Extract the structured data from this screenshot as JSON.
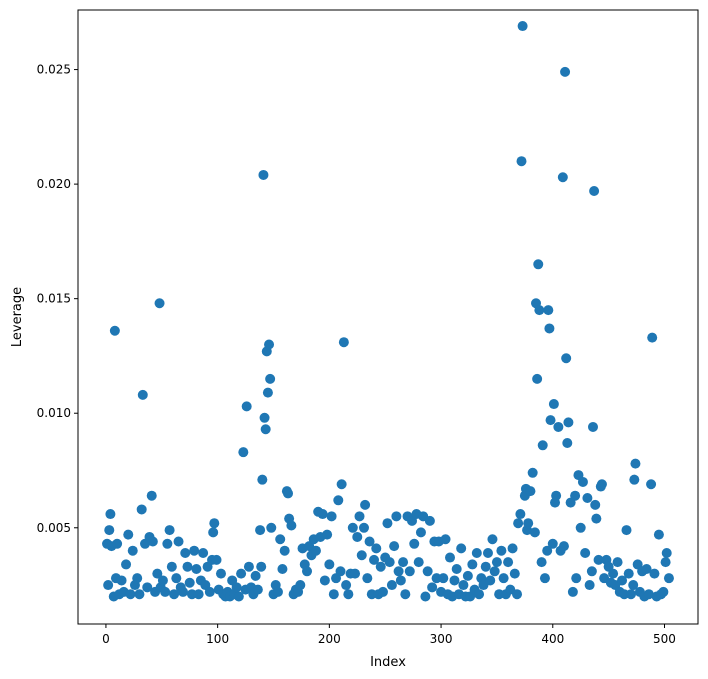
{
  "chart_data": {
    "type": "scatter",
    "xlabel": "Index",
    "ylabel": "Leverage",
    "xlim": [
      -25,
      530
    ],
    "ylim": [
      0.0008,
      0.0276
    ],
    "x_ticks": [
      0,
      100,
      200,
      300,
      400,
      500
    ],
    "x_tick_labels": [
      "0",
      "100",
      "200",
      "300",
      "400",
      "500"
    ],
    "y_ticks": [
      0.005,
      0.01,
      0.015,
      0.02,
      0.025
    ],
    "y_tick_labels": [
      "0.005",
      "0.010",
      "0.015",
      "0.020",
      "0.025"
    ],
    "grid": false,
    "legend": "none",
    "marker_color": "#1f77b4",
    "series": [
      {
        "points": [
          [
            1,
            0.0043
          ],
          [
            2,
            0.0025
          ],
          [
            3,
            0.0049
          ],
          [
            4,
            0.0056
          ],
          [
            5,
            0.0042
          ],
          [
            7,
            0.002
          ],
          [
            8,
            0.0136
          ],
          [
            9,
            0.0028
          ],
          [
            10,
            0.0043
          ],
          [
            12,
            0.0021
          ],
          [
            14,
            0.0027
          ],
          [
            16,
            0.0022
          ],
          [
            18,
            0.0034
          ],
          [
            20,
            0.0047
          ],
          [
            22,
            0.0021
          ],
          [
            24,
            0.004
          ],
          [
            26,
            0.0025
          ],
          [
            28,
            0.0028
          ],
          [
            30,
            0.0021
          ],
          [
            32,
            0.0058
          ],
          [
            33,
            0.0108
          ],
          [
            35,
            0.0043
          ],
          [
            37,
            0.0024
          ],
          [
            39,
            0.0046
          ],
          [
            41,
            0.0064
          ],
          [
            42,
            0.0044
          ],
          [
            44,
            0.0022
          ],
          [
            46,
            0.003
          ],
          [
            48,
            0.0148
          ],
          [
            49,
            0.0024
          ],
          [
            51,
            0.0027
          ],
          [
            53,
            0.0022
          ],
          [
            55,
            0.0043
          ],
          [
            57,
            0.0049
          ],
          [
            59,
            0.0033
          ],
          [
            61,
            0.0021
          ],
          [
            63,
            0.0028
          ],
          [
            65,
            0.0044
          ],
          [
            67,
            0.0024
          ],
          [
            69,
            0.0022
          ],
          [
            71,
            0.0039
          ],
          [
            73,
            0.0033
          ],
          [
            75,
            0.0026
          ],
          [
            77,
            0.0021
          ],
          [
            79,
            0.004
          ],
          [
            81,
            0.0032
          ],
          [
            83,
            0.0021
          ],
          [
            85,
            0.0027
          ],
          [
            87,
            0.0039
          ],
          [
            89,
            0.0025
          ],
          [
            91,
            0.0033
          ],
          [
            93,
            0.0022
          ],
          [
            95,
            0.0036
          ],
          [
            96,
            0.0048
          ],
          [
            97,
            0.0052
          ],
          [
            99,
            0.0036
          ],
          [
            101,
            0.0023
          ],
          [
            103,
            0.003
          ],
          [
            105,
            0.0021
          ],
          [
            107,
            0.002
          ],
          [
            109,
            0.0022
          ],
          [
            111,
            0.002
          ],
          [
            113,
            0.0027
          ],
          [
            115,
            0.0021
          ],
          [
            117,
            0.0024
          ],
          [
            119,
            0.002
          ],
          [
            121,
            0.003
          ],
          [
            123,
            0.0083
          ],
          [
            125,
            0.0023
          ],
          [
            126,
            0.0103
          ],
          [
            128,
            0.0033
          ],
          [
            130,
            0.0024
          ],
          [
            132,
            0.0021
          ],
          [
            134,
            0.0029
          ],
          [
            136,
            0.0023
          ],
          [
            138,
            0.0049
          ],
          [
            139,
            0.0033
          ],
          [
            140,
            0.0071
          ],
          [
            141,
            0.0204
          ],
          [
            142,
            0.0098
          ],
          [
            143,
            0.0093
          ],
          [
            144,
            0.0127
          ],
          [
            145,
            0.0109
          ],
          [
            146,
            0.013
          ],
          [
            147,
            0.0115
          ],
          [
            148,
            0.005
          ],
          [
            150,
            0.0021
          ],
          [
            152,
            0.0025
          ],
          [
            154,
            0.0022
          ],
          [
            156,
            0.0045
          ],
          [
            158,
            0.0032
          ],
          [
            160,
            0.004
          ],
          [
            162,
            0.0066
          ],
          [
            163,
            0.0065
          ],
          [
            164,
            0.0054
          ],
          [
            166,
            0.0051
          ],
          [
            168,
            0.0021
          ],
          [
            170,
            0.0023
          ],
          [
            172,
            0.0022
          ],
          [
            174,
            0.0025
          ],
          [
            176,
            0.0041
          ],
          [
            178,
            0.0034
          ],
          [
            180,
            0.0031
          ],
          [
            182,
            0.0042
          ],
          [
            184,
            0.0038
          ],
          [
            186,
            0.0045
          ],
          [
            188,
            0.004
          ],
          [
            190,
            0.0057
          ],
          [
            192,
            0.0046
          ],
          [
            194,
            0.0056
          ],
          [
            196,
            0.0027
          ],
          [
            198,
            0.0047
          ],
          [
            200,
            0.0034
          ],
          [
            202,
            0.0055
          ],
          [
            204,
            0.0021
          ],
          [
            206,
            0.0028
          ],
          [
            208,
            0.0062
          ],
          [
            210,
            0.0031
          ],
          [
            211,
            0.0069
          ],
          [
            213,
            0.0131
          ],
          [
            215,
            0.0025
          ],
          [
            217,
            0.0021
          ],
          [
            219,
            0.003
          ],
          [
            221,
            0.005
          ],
          [
            223,
            0.003
          ],
          [
            225,
            0.0046
          ],
          [
            227,
            0.0055
          ],
          [
            229,
            0.0038
          ],
          [
            231,
            0.005
          ],
          [
            232,
            0.006
          ],
          [
            234,
            0.0028
          ],
          [
            236,
            0.0044
          ],
          [
            238,
            0.0021
          ],
          [
            240,
            0.0036
          ],
          [
            242,
            0.0041
          ],
          [
            244,
            0.0021
          ],
          [
            246,
            0.0033
          ],
          [
            248,
            0.0022
          ],
          [
            250,
            0.0037
          ],
          [
            252,
            0.0052
          ],
          [
            254,
            0.0035
          ],
          [
            256,
            0.0025
          ],
          [
            258,
            0.0042
          ],
          [
            260,
            0.0055
          ],
          [
            262,
            0.0031
          ],
          [
            264,
            0.0027
          ],
          [
            266,
            0.0035
          ],
          [
            268,
            0.0021
          ],
          [
            270,
            0.0055
          ],
          [
            272,
            0.0031
          ],
          [
            274,
            0.0053
          ],
          [
            276,
            0.0043
          ],
          [
            278,
            0.0056
          ],
          [
            280,
            0.0035
          ],
          [
            282,
            0.0048
          ],
          [
            284,
            0.0055
          ],
          [
            286,
            0.002
          ],
          [
            288,
            0.0031
          ],
          [
            290,
            0.0053
          ],
          [
            292,
            0.0024
          ],
          [
            294,
            0.0044
          ],
          [
            296,
            0.0028
          ],
          [
            298,
            0.0044
          ],
          [
            300,
            0.0022
          ],
          [
            302,
            0.0028
          ],
          [
            304,
            0.0045
          ],
          [
            306,
            0.0021
          ],
          [
            308,
            0.0037
          ],
          [
            310,
            0.002
          ],
          [
            312,
            0.0027
          ],
          [
            314,
            0.0032
          ],
          [
            316,
            0.0021
          ],
          [
            318,
            0.0041
          ],
          [
            320,
            0.0025
          ],
          [
            322,
            0.002
          ],
          [
            324,
            0.0029
          ],
          [
            326,
            0.002
          ],
          [
            328,
            0.0034
          ],
          [
            330,
            0.0023
          ],
          [
            332,
            0.0039
          ],
          [
            334,
            0.0021
          ],
          [
            336,
            0.0028
          ],
          [
            338,
            0.0025
          ],
          [
            340,
            0.0033
          ],
          [
            342,
            0.0039
          ],
          [
            344,
            0.0027
          ],
          [
            346,
            0.0045
          ],
          [
            348,
            0.0031
          ],
          [
            350,
            0.0035
          ],
          [
            352,
            0.0021
          ],
          [
            354,
            0.004
          ],
          [
            356,
            0.0028
          ],
          [
            358,
            0.0021
          ],
          [
            360,
            0.0035
          ],
          [
            362,
            0.0023
          ],
          [
            364,
            0.0041
          ],
          [
            366,
            0.003
          ],
          [
            368,
            0.0021
          ],
          [
            369,
            0.0052
          ],
          [
            371,
            0.0056
          ],
          [
            372,
            0.021
          ],
          [
            373,
            0.0269
          ],
          [
            375,
            0.0064
          ],
          [
            376,
            0.0067
          ],
          [
            377,
            0.0049
          ],
          [
            378,
            0.0052
          ],
          [
            380,
            0.0066
          ],
          [
            382,
            0.0074
          ],
          [
            384,
            0.0048
          ],
          [
            385,
            0.0148
          ],
          [
            386,
            0.0115
          ],
          [
            387,
            0.0165
          ],
          [
            388,
            0.0145
          ],
          [
            390,
            0.0035
          ],
          [
            391,
            0.0086
          ],
          [
            393,
            0.0028
          ],
          [
            395,
            0.004
          ],
          [
            396,
            0.0145
          ],
          [
            397,
            0.0137
          ],
          [
            398,
            0.0097
          ],
          [
            400,
            0.0043
          ],
          [
            401,
            0.0104
          ],
          [
            402,
            0.0061
          ],
          [
            403,
            0.0064
          ],
          [
            405,
            0.0094
          ],
          [
            407,
            0.004
          ],
          [
            409,
            0.0203
          ],
          [
            410,
            0.0042
          ],
          [
            411,
            0.0249
          ],
          [
            412,
            0.0124
          ],
          [
            413,
            0.0087
          ],
          [
            414,
            0.0096
          ],
          [
            416,
            0.0061
          ],
          [
            418,
            0.0022
          ],
          [
            420,
            0.0064
          ],
          [
            421,
            0.0028
          ],
          [
            423,
            0.0073
          ],
          [
            425,
            0.005
          ],
          [
            427,
            0.007
          ],
          [
            429,
            0.0039
          ],
          [
            431,
            0.0063
          ],
          [
            433,
            0.0025
          ],
          [
            435,
            0.0031
          ],
          [
            436,
            0.0094
          ],
          [
            437,
            0.0197
          ],
          [
            438,
            0.006
          ],
          [
            439,
            0.0054
          ],
          [
            441,
            0.0036
          ],
          [
            443,
            0.0068
          ],
          [
            444,
            0.0069
          ],
          [
            446,
            0.0028
          ],
          [
            448,
            0.0036
          ],
          [
            450,
            0.0033
          ],
          [
            452,
            0.0026
          ],
          [
            454,
            0.003
          ],
          [
            456,
            0.0025
          ],
          [
            458,
            0.0035
          ],
          [
            460,
            0.0022
          ],
          [
            462,
            0.0027
          ],
          [
            464,
            0.0021
          ],
          [
            466,
            0.0049
          ],
          [
            468,
            0.003
          ],
          [
            470,
            0.0021
          ],
          [
            472,
            0.0025
          ],
          [
            473,
            0.0071
          ],
          [
            474,
            0.0078
          ],
          [
            476,
            0.0034
          ],
          [
            478,
            0.0022
          ],
          [
            480,
            0.0031
          ],
          [
            482,
            0.002
          ],
          [
            484,
            0.0032
          ],
          [
            486,
            0.0021
          ],
          [
            488,
            0.0069
          ],
          [
            489,
            0.0133
          ],
          [
            491,
            0.003
          ],
          [
            493,
            0.002
          ],
          [
            495,
            0.0047
          ],
          [
            497,
            0.0021
          ],
          [
            499,
            0.0022
          ],
          [
            501,
            0.0035
          ],
          [
            502,
            0.0039
          ],
          [
            504,
            0.0028
          ]
        ]
      }
    ]
  }
}
